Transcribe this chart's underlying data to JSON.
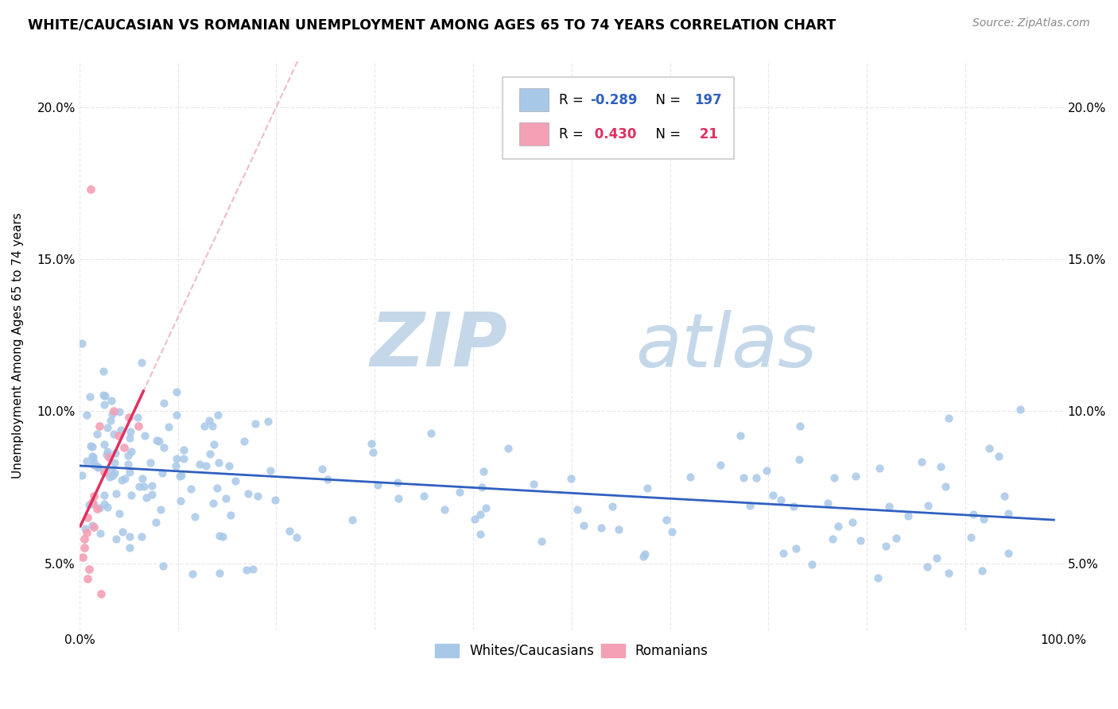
{
  "title": "WHITE/CAUCASIAN VS ROMANIAN UNEMPLOYMENT AMONG AGES 65 TO 74 YEARS CORRELATION CHART",
  "source": "Source: ZipAtlas.com",
  "ylabel": "Unemployment Among Ages 65 to 74 years",
  "xlim": [
    0.0,
    1.0
  ],
  "ylim": [
    0.028,
    0.215
  ],
  "x_ticks": [
    0.0,
    0.1,
    0.2,
    0.3,
    0.4,
    0.5,
    0.6,
    0.7,
    0.8,
    0.9,
    1.0
  ],
  "x_tick_labels": [
    "0.0%",
    "",
    "",
    "",
    "",
    "",
    "",
    "",
    "",
    "",
    "100.0%"
  ],
  "y_ticks": [
    0.05,
    0.1,
    0.15,
    0.2
  ],
  "y_tick_labels": [
    "5.0%",
    "10.0%",
    "15.0%",
    "20.0%"
  ],
  "white_R": -0.289,
  "white_N": 197,
  "romanian_R": 0.43,
  "romanian_N": 21,
  "white_dot_color": "#a8c8e8",
  "romanian_dot_color": "#f4a0b5",
  "white_line_color": "#3060c0",
  "romanian_line_color": "#e03060",
  "romanian_dash_color": "#e8a0b0",
  "grid_color": "#e8e8e8",
  "legend_R_color": "#3060c0",
  "legend_N_color": "#3060c0",
  "legend_R2_color": "#e03060",
  "legend_N2_color": "#e03060",
  "watermark_zip_color": "#c8d8e8",
  "watermark_atlas_color": "#c8d8e8"
}
